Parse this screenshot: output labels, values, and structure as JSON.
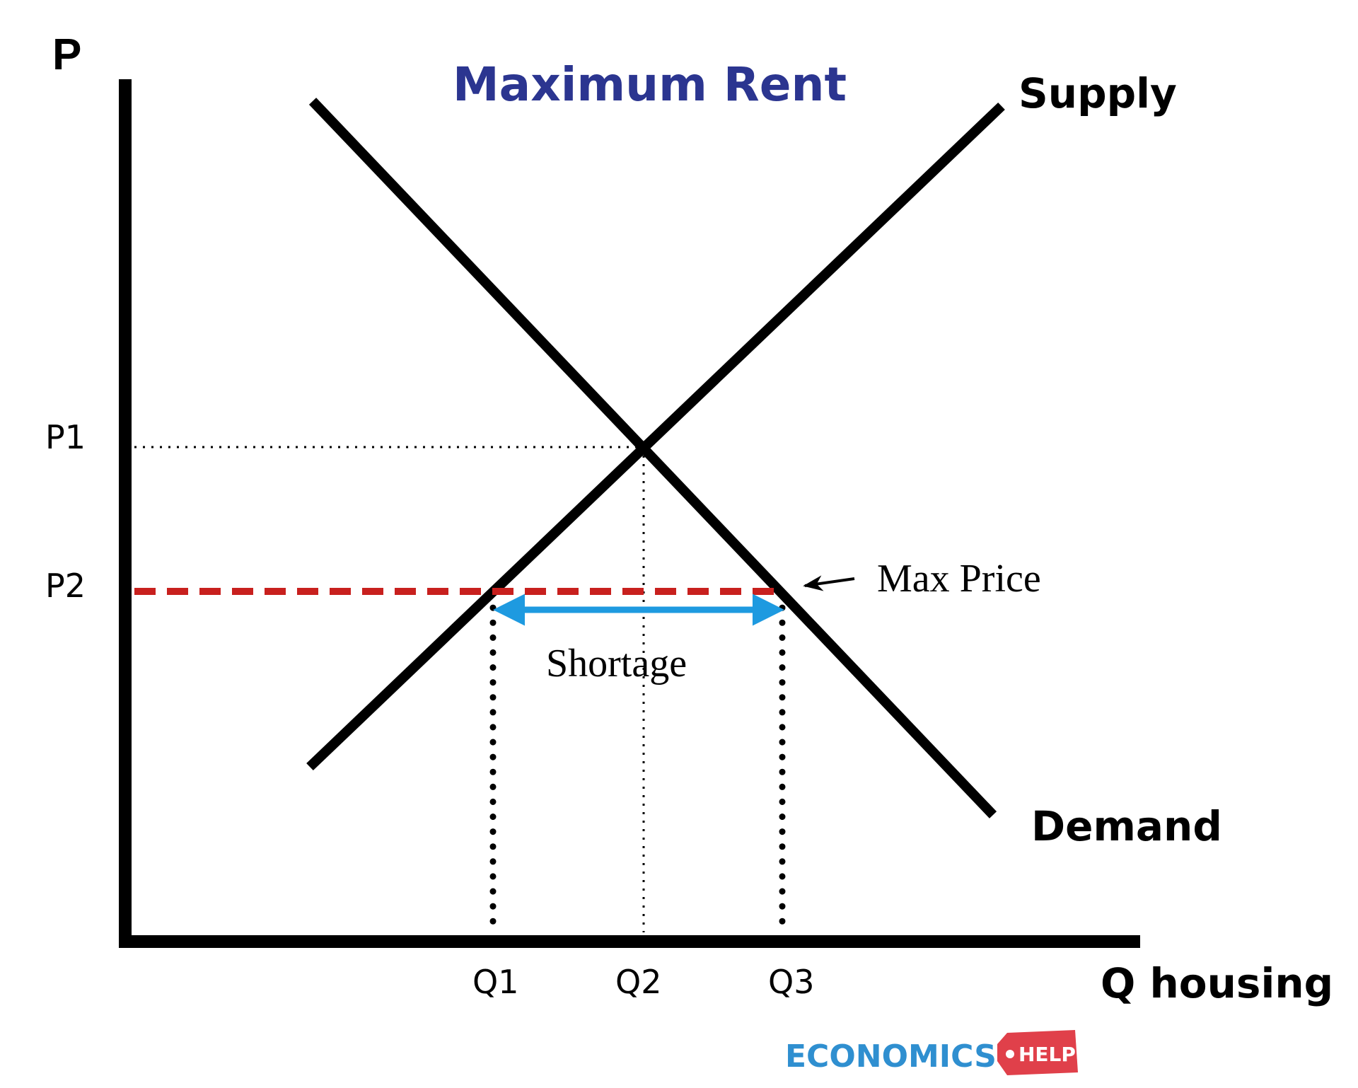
{
  "diagram": {
    "title": "Maximum Rent",
    "y_axis_label": "P",
    "x_axis_label": "Q housing",
    "supply_label": "Supply",
    "demand_label": "Demand",
    "price_labels": {
      "p1": "P1",
      "p2": "P2"
    },
    "quantity_labels": {
      "q1": "Q1",
      "q2": "Q2",
      "q3": "Q3"
    },
    "max_price_label": "Max Price",
    "shortage_label": "Shortage",
    "colors": {
      "title": "#2b3590",
      "max_price_line": "#c8201e",
      "shortage_arrow": "#1e9ae0",
      "logo_text": "#2f8fd0",
      "logo_tag": "#e0404a"
    }
  },
  "logo": {
    "text": "ECONOMICS",
    "tag": "HELP"
  }
}
